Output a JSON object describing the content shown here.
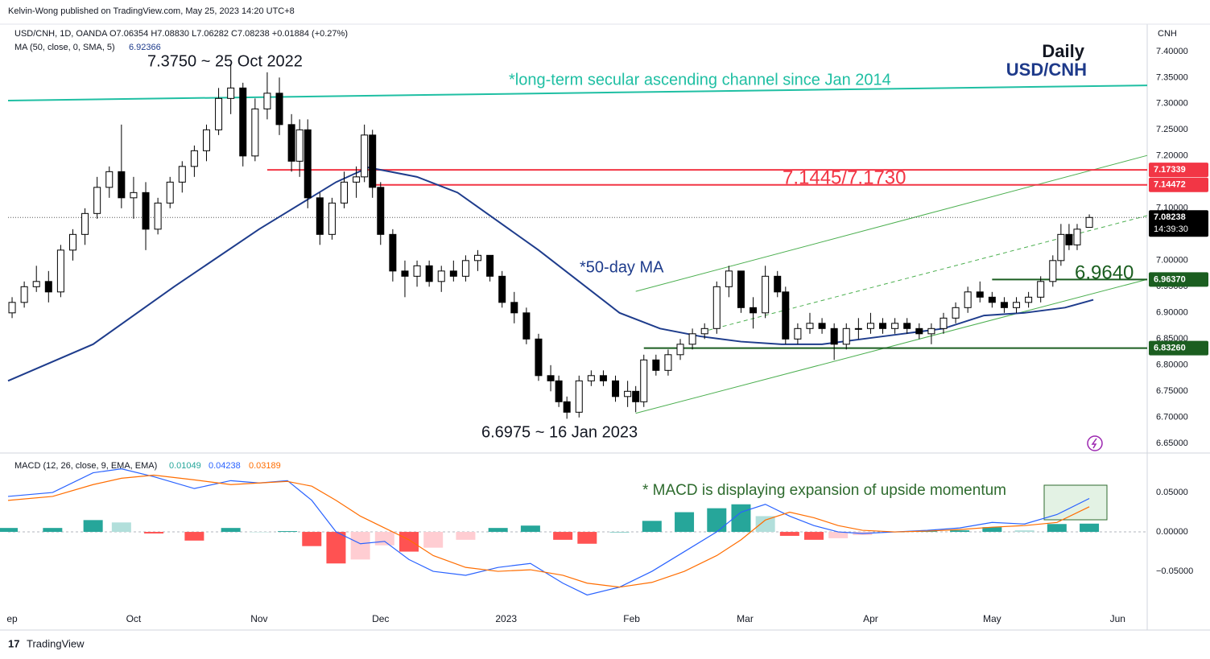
{
  "chart_data": {
    "type": "candlestick",
    "publisher": "Kelvin-Wong published on TradingView.com, May 25, 2023 14:20 UTC+8",
    "legend": "USD/CNH, 1D, OANDA  O7.06354  H7.08830  L7.06282  C7.08238  +0.01884 (+0.27%)",
    "currency": "CNH",
    "footer": "TradingView",
    "title": "Daily",
    "subtitle": "USD/CNH",
    "annotations": [
      "7.3750 ~ 25 Oct 2022",
      "6.6975 ~ 16 Jan 2023",
      "*long-term secular ascending channel since Jan 2014",
      "7.1445/7.1730",
      "*50-day MA",
      "6.9640",
      "* MACD is displaying expansion of upside momentum"
    ],
    "up_color": "#ffffff",
    "down_color": "#000000",
    "xlim": [
      -31,
      250.3
    ],
    "xticks": [
      {
        "value": -30,
        "label": "ep"
      },
      {
        "value": 0,
        "label": "Oct"
      },
      {
        "value": 31,
        "label": "Nov"
      },
      {
        "value": 61,
        "label": "Dec"
      },
      {
        "value": 92,
        "label": "2023"
      },
      {
        "value": 123,
        "label": "Feb"
      },
      {
        "value": 151,
        "label": "Mar"
      },
      {
        "value": 182,
        "label": "Apr"
      },
      {
        "value": 212,
        "label": "May"
      },
      {
        "value": 243,
        "label": "Jun"
      }
    ],
    "ylim": [
      6.632,
      7.449
    ],
    "yticks": [
      {
        "value": 7.4,
        "label": "7.40000"
      },
      {
        "value": 7.35,
        "label": "7.35000"
      },
      {
        "value": 7.3,
        "label": "7.30000"
      },
      {
        "value": 7.25,
        "label": "7.25000"
      },
      {
        "value": 7.2,
        "label": "7.20000"
      },
      {
        "value": 7.15,
        "label": "7.15000"
      },
      {
        "value": 7.1,
        "label": "7.10000"
      },
      {
        "value": 7.05,
        "label": "7.05000"
      },
      {
        "value": 7.0,
        "label": "7.00000"
      },
      {
        "value": 6.95,
        "label": "6.95000"
      },
      {
        "value": 6.9,
        "label": "6.90000"
      },
      {
        "value": 6.85,
        "label": "6.85000"
      },
      {
        "value": 6.8,
        "label": "6.80000"
      },
      {
        "value": 6.75,
        "label": "6.75000"
      },
      {
        "value": 6.7,
        "label": "6.70000"
      },
      {
        "value": 6.65,
        "label": "6.65000"
      }
    ],
    "grid": false,
    "candles": [
      [
        -30,
        6.9,
        6.93,
        6.89,
        6.92
      ],
      [
        -27,
        6.92,
        6.96,
        6.91,
        6.95
      ],
      [
        -24,
        6.95,
        6.99,
        6.94,
        6.96
      ],
      [
        -21,
        6.96,
        6.98,
        6.92,
        6.94
      ],
      [
        -18,
        6.94,
        7.03,
        6.93,
        7.02
      ],
      [
        -15,
        7.02,
        7.06,
        7.0,
        7.05
      ],
      [
        -12,
        7.05,
        7.1,
        7.03,
        7.09
      ],
      [
        -9,
        7.09,
        7.16,
        7.08,
        7.14
      ],
      [
        -6,
        7.14,
        7.18,
        7.12,
        7.17
      ],
      [
        -3,
        7.17,
        7.26,
        7.1,
        7.12
      ],
      [
        0,
        7.12,
        7.16,
        7.08,
        7.13
      ],
      [
        3,
        7.13,
        7.15,
        7.02,
        7.06
      ],
      [
        6,
        7.06,
        7.12,
        7.05,
        7.11
      ],
      [
        9,
        7.11,
        7.16,
        7.1,
        7.15
      ],
      [
        12,
        7.15,
        7.19,
        7.13,
        7.18
      ],
      [
        15,
        7.18,
        7.22,
        7.16,
        7.21
      ],
      [
        18,
        7.21,
        7.26,
        7.19,
        7.25
      ],
      [
        21,
        7.25,
        7.33,
        7.24,
        7.31
      ],
      [
        24,
        7.31,
        7.375,
        7.28,
        7.33
      ],
      [
        27,
        7.33,
        7.34,
        7.18,
        7.2
      ],
      [
        30,
        7.2,
        7.31,
        7.19,
        7.29
      ],
      [
        33,
        7.29,
        7.36,
        7.27,
        7.32
      ],
      [
        36,
        7.32,
        7.35,
        7.24,
        7.26
      ],
      [
        39,
        7.26,
        7.28,
        7.17,
        7.19
      ],
      [
        41,
        7.19,
        7.27,
        7.16,
        7.25
      ],
      [
        43,
        7.25,
        7.27,
        7.1,
        7.12
      ],
      [
        46,
        7.12,
        7.13,
        7.03,
        7.05
      ],
      [
        49,
        7.05,
        7.12,
        7.04,
        7.11
      ],
      [
        52,
        7.11,
        7.17,
        7.1,
        7.15
      ],
      [
        55,
        7.15,
        7.18,
        7.12,
        7.16
      ],
      [
        57,
        7.16,
        7.26,
        7.15,
        7.24
      ],
      [
        59,
        7.24,
        7.25,
        7.12,
        7.14
      ],
      [
        61,
        7.14,
        7.15,
        7.03,
        7.05
      ],
      [
        64,
        7.05,
        7.06,
        6.96,
        6.98
      ],
      [
        67,
        6.98,
        7.0,
        6.93,
        6.97
      ],
      [
        70,
        6.97,
        7.0,
        6.95,
        6.99
      ],
      [
        73,
        6.99,
        7.0,
        6.95,
        6.96
      ],
      [
        76,
        6.96,
        6.99,
        6.94,
        6.98
      ],
      [
        79,
        6.98,
        7.0,
        6.96,
        6.97
      ],
      [
        82,
        6.97,
        7.01,
        6.96,
        7.0
      ],
      [
        85,
        7.0,
        7.02,
        6.98,
        7.01
      ],
      [
        88,
        7.01,
        7.01,
        6.96,
        6.97
      ],
      [
        91,
        6.97,
        6.98,
        6.91,
        6.92
      ],
      [
        94,
        6.92,
        6.94,
        6.88,
        6.9
      ],
      [
        97,
        6.9,
        6.91,
        6.84,
        6.85
      ],
      [
        100,
        6.85,
        6.86,
        6.77,
        6.78
      ],
      [
        103,
        6.78,
        6.8,
        6.75,
        6.77
      ],
      [
        105,
        6.77,
        6.78,
        6.72,
        6.73
      ],
      [
        107,
        6.73,
        6.74,
        6.6975,
        6.71
      ],
      [
        110,
        6.71,
        6.78,
        6.7,
        6.77
      ],
      [
        113,
        6.77,
        6.79,
        6.76,
        6.78
      ],
      [
        116,
        6.78,
        6.79,
        6.76,
        6.77
      ],
      [
        119,
        6.77,
        6.78,
        6.73,
        6.74
      ],
      [
        122,
        6.74,
        6.77,
        6.72,
        6.75
      ],
      [
        124,
        6.75,
        6.76,
        6.71,
        6.73
      ],
      [
        126,
        6.73,
        6.82,
        6.72,
        6.81
      ],
      [
        129,
        6.81,
        6.82,
        6.78,
        6.79
      ],
      [
        132,
        6.79,
        6.83,
        6.78,
        6.82
      ],
      [
        135,
        6.82,
        6.85,
        6.81,
        6.84
      ],
      [
        138,
        6.84,
        6.87,
        6.83,
        6.86
      ],
      [
        141,
        6.86,
        6.88,
        6.85,
        6.87
      ],
      [
        144,
        6.87,
        6.96,
        6.86,
        6.95
      ],
      [
        147,
        6.95,
        6.99,
        6.93,
        6.98
      ],
      [
        150,
        6.98,
        6.98,
        6.9,
        6.91
      ],
      [
        153,
        6.91,
        6.93,
        6.87,
        6.9
      ],
      [
        156,
        6.9,
        6.99,
        6.89,
        6.97
      ],
      [
        159,
        6.97,
        6.98,
        6.93,
        6.94
      ],
      [
        161,
        6.94,
        6.95,
        6.84,
        6.85
      ],
      [
        164,
        6.85,
        6.88,
        6.84,
        6.87
      ],
      [
        167,
        6.87,
        6.9,
        6.86,
        6.88
      ],
      [
        170,
        6.88,
        6.89,
        6.86,
        6.87
      ],
      [
        173,
        6.87,
        6.88,
        6.81,
        6.84
      ],
      [
        176,
        6.84,
        6.88,
        6.83,
        6.87
      ],
      [
        179,
        6.87,
        6.89,
        6.85,
        6.87
      ],
      [
        182,
        6.87,
        6.9,
        6.86,
        6.88
      ],
      [
        185,
        6.88,
        6.89,
        6.86,
        6.87
      ],
      [
        188,
        6.87,
        6.89,
        6.86,
        6.88
      ],
      [
        191,
        6.88,
        6.89,
        6.86,
        6.87
      ],
      [
        194,
        6.87,
        6.88,
        6.85,
        6.86
      ],
      [
        197,
        6.86,
        6.88,
        6.84,
        6.87
      ],
      [
        200,
        6.87,
        6.9,
        6.86,
        6.89
      ],
      [
        203,
        6.89,
        6.92,
        6.88,
        6.91
      ],
      [
        206,
        6.91,
        6.95,
        6.9,
        6.94
      ],
      [
        209,
        6.94,
        6.96,
        6.92,
        6.93
      ],
      [
        212,
        6.93,
        6.94,
        6.91,
        6.92
      ],
      [
        215,
        6.92,
        6.93,
        6.9,
        6.91
      ],
      [
        218,
        6.91,
        6.93,
        6.9,
        6.92
      ],
      [
        221,
        6.92,
        6.94,
        6.91,
        6.93
      ],
      [
        224,
        6.93,
        6.97,
        6.92,
        6.96
      ],
      [
        227,
        6.96,
        7.01,
        6.95,
        7.0
      ],
      [
        229,
        7.0,
        7.07,
        6.99,
        7.05
      ],
      [
        231,
        7.05,
        7.07,
        7.02,
        7.03
      ],
      [
        233,
        7.03,
        7.07,
        7.02,
        7.06
      ],
      [
        236,
        7.06354,
        7.0883,
        7.06282,
        7.08238
      ]
    ],
    "ma": {
      "name": "MA (50, close, 0, SMA, 5)",
      "value_label": "6.92366",
      "color": "#1e3c8c",
      "x": [
        -31,
        -10,
        10,
        31,
        50,
        58,
        70,
        80,
        100,
        110,
        120,
        130,
        140,
        150,
        160,
        170,
        180,
        190,
        200,
        210,
        220,
        230,
        237
      ],
      "values": [
        6.77,
        6.84,
        6.95,
        7.06,
        7.15,
        7.178,
        7.16,
        7.13,
        7.02,
        6.96,
        6.9,
        6.87,
        6.855,
        6.845,
        6.84,
        6.84,
        6.85,
        6.86,
        6.87,
        6.895,
        6.9,
        6.91,
        6.925
      ]
    },
    "levels": [
      {
        "value": 7.17339,
        "label": "7.17339",
        "color": "#f23645",
        "x0": 33
      },
      {
        "value": 7.14472,
        "label": "7.14472",
        "color": "#f23645",
        "x0": 59
      },
      {
        "value": 6.9637,
        "label": "6.96370",
        "color": "#1b5e20",
        "x0": 212
      },
      {
        "value": 6.8326,
        "label": "6.83260",
        "color": "#1b5e20",
        "x0": 126
      }
    ],
    "last": {
      "value": 7.08238,
      "label": "7.08238",
      "countdown": "14:39:30"
    },
    "trendlines": [
      {
        "x": [
          -31,
          250.3
        ],
        "y": [
          7.306,
          7.335
        ],
        "color": "#1fbfa3"
      },
      {
        "x": [
          124,
          250.3
        ],
        "y": [
          6.941,
          7.201
        ],
        "color": "#4caf50"
      },
      {
        "x": [
          124,
          250.3
        ],
        "y": [
          6.708,
          6.964
        ],
        "color": "#4caf50"
      },
      {
        "x": [
          142,
          250.3
        ],
        "y": [
          6.867,
          7.086
        ],
        "color": "#4caf50",
        "dashed": true
      }
    ],
    "macd": {
      "name": "MACD (12, 26, close, 9, EMA, EMA)",
      "value_labels": [
        "0.01049",
        "0.04238",
        "0.03189"
      ],
      "macd_color": "#2962ff",
      "signal_color": "#ff6d00",
      "hist_colors": [
        "#26a69a",
        "#b2dfdb",
        "#ff5252",
        "#ffcdd2"
      ],
      "ylim": [
        -0.103,
        0.098
      ],
      "yticks": [
        {
          "value": 0.05,
          "label": "0.05000"
        },
        {
          "value": 0,
          "label": "0.00000"
        },
        {
          "value": -0.05,
          "label": "−0.05000"
        }
      ],
      "x": [
        -31,
        -20,
        -10,
        -3,
        5,
        15,
        24,
        31,
        38,
        44,
        50,
        56,
        62,
        68,
        74,
        82,
        90,
        98,
        106,
        112,
        120,
        128,
        136,
        144,
        150,
        156,
        162,
        168,
        174,
        180,
        188,
        196,
        204,
        212,
        220,
        228,
        236
      ],
      "macd_values": [
        0.045,
        0.05,
        0.075,
        0.08,
        0.07,
        0.055,
        0.065,
        0.062,
        0.065,
        0.04,
        0,
        -0.015,
        -0.012,
        -0.035,
        -0.05,
        -0.055,
        -0.045,
        -0.04,
        -0.065,
        -0.08,
        -0.07,
        -0.05,
        -0.025,
        0,
        0.025,
        0.035,
        0.02,
        0.008,
        0,
        -0.002,
        0,
        0.002,
        0.005,
        0.012,
        0.01,
        0.022,
        0.04238
      ],
      "signal_values": [
        0.04,
        0.045,
        0.06,
        0.068,
        0.072,
        0.066,
        0.06,
        0.062,
        0.064,
        0.058,
        0.04,
        0.02,
        0.005,
        -0.01,
        -0.03,
        -0.045,
        -0.05,
        -0.048,
        -0.055,
        -0.065,
        -0.07,
        -0.064,
        -0.05,
        -0.03,
        -0.01,
        0.015,
        0.025,
        0.018,
        0.008,
        0.002,
        0,
        0.001,
        0.003,
        0.006,
        0.008,
        0.012,
        0.03189
      ],
      "hist_values": [
        0.005,
        0.005,
        0.015,
        0.012,
        -0.002,
        -0.011,
        0.005,
        0,
        0.001,
        -0.018,
        -0.04,
        -0.035,
        -0.017,
        -0.025,
        -0.02,
        -0.01,
        0.005,
        0.008,
        -0.01,
        -0.015,
        0,
        0.014,
        0.025,
        0.03,
        0.035,
        0.02,
        -0.005,
        -0.01,
        -0.008,
        -0.004,
        0,
        0.001,
        0.002,
        0.006,
        0.002,
        0.01,
        0.01049
      ]
    }
  }
}
